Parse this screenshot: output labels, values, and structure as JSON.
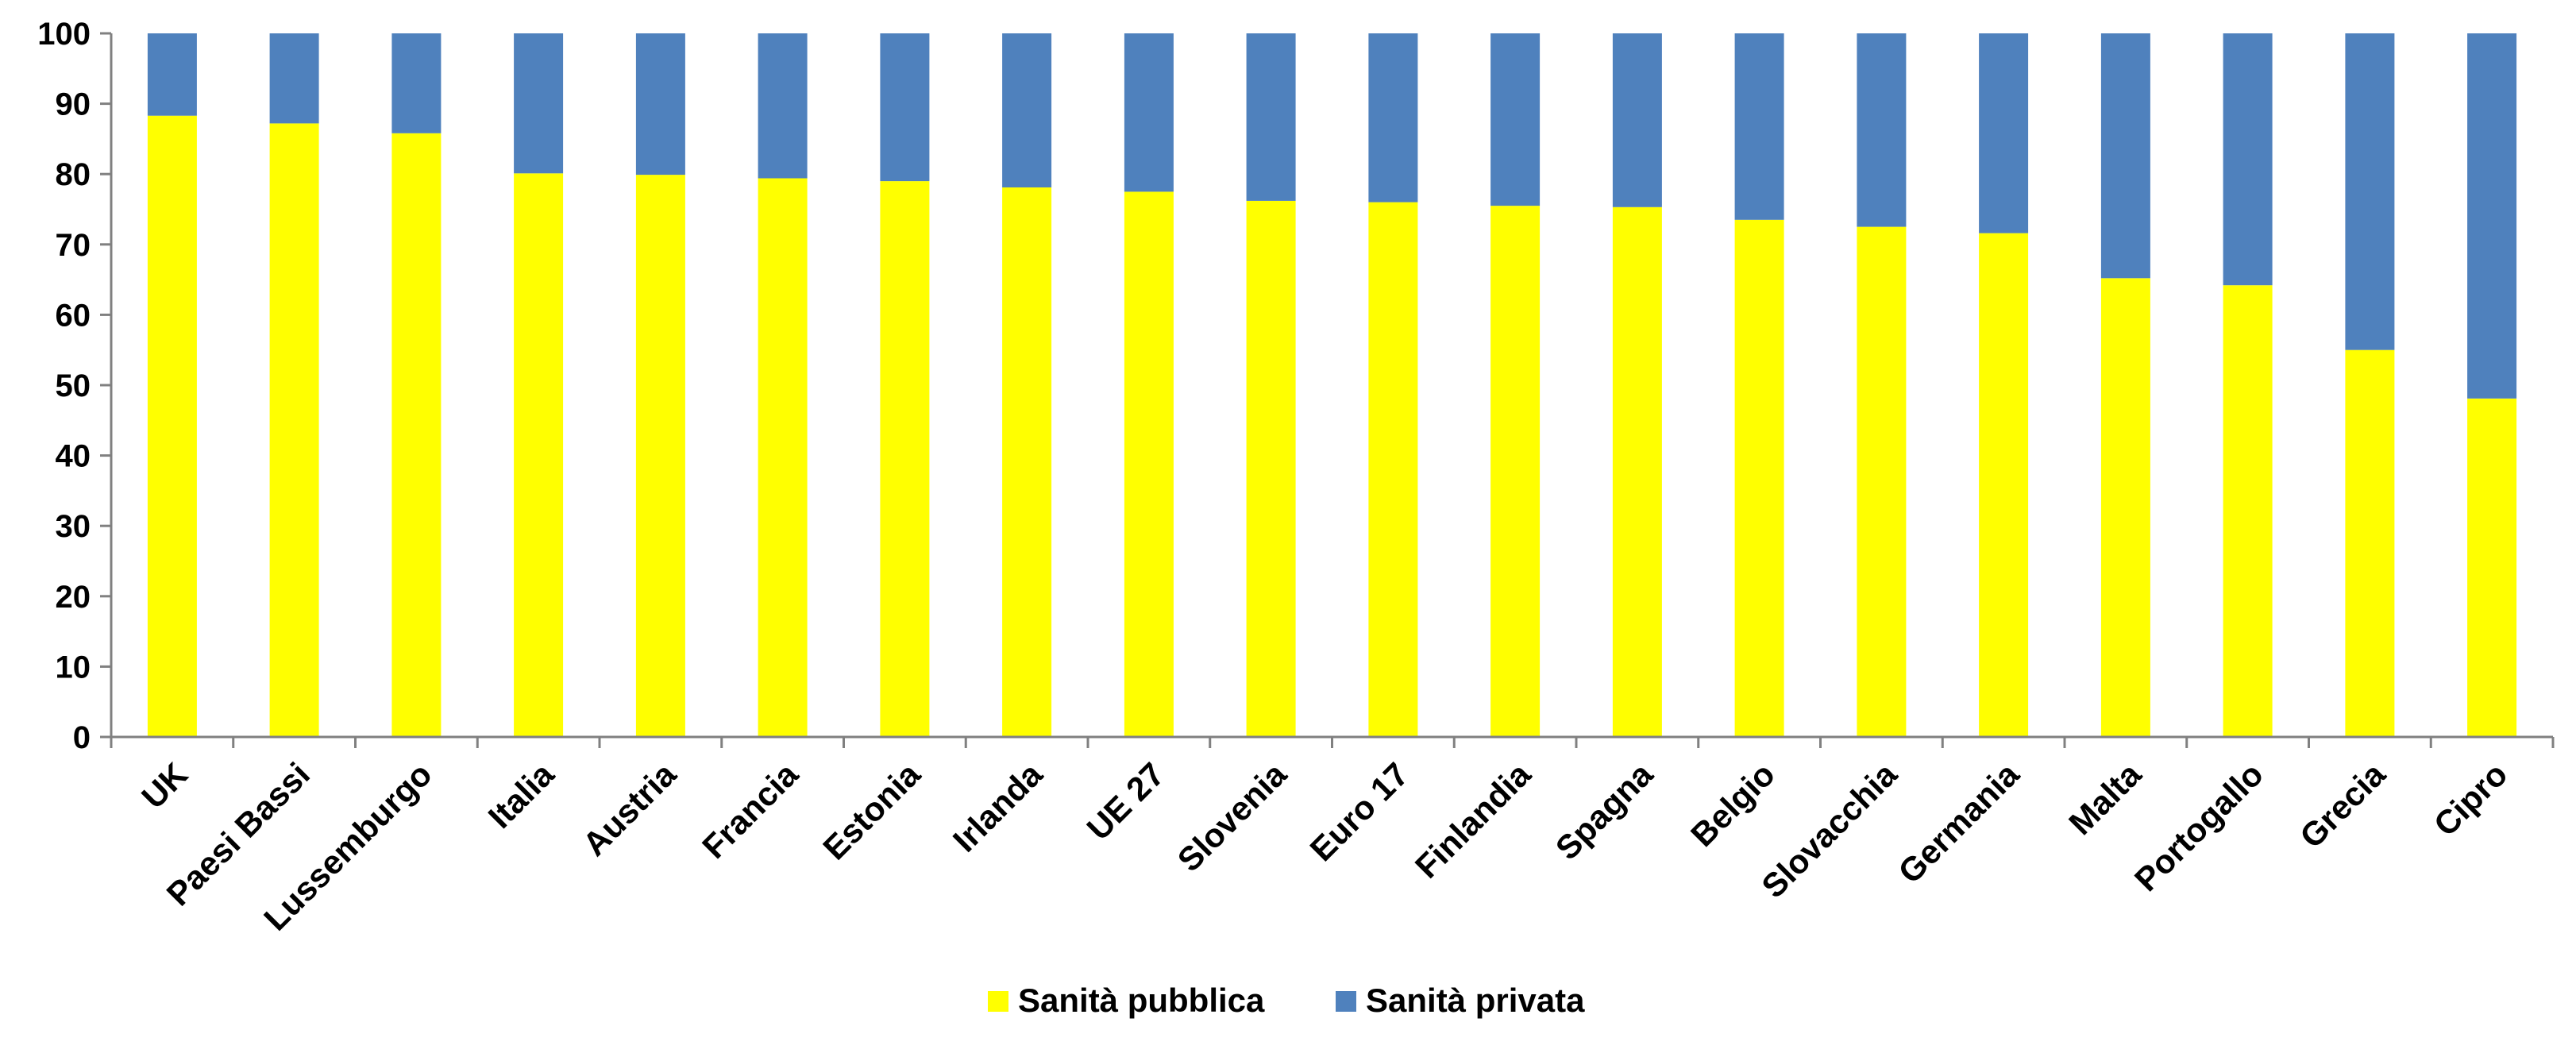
{
  "chart_data": {
    "type": "bar",
    "stacked": true,
    "title": "",
    "xlabel": "",
    "ylabel": "",
    "ylim": [
      0,
      100
    ],
    "yticks": [
      0,
      10,
      20,
      30,
      40,
      50,
      60,
      70,
      80,
      90,
      100
    ],
    "grid": false,
    "legend_position": "bottom",
    "categories": [
      "UK",
      "Paesi Bassi",
      "Lussemburgo",
      "Italia",
      "Austria",
      "Francia",
      "Estonia",
      "Irlanda",
      "UE 27",
      "Slovenia",
      "Euro 17",
      "Finlandia",
      "Spagna",
      "Belgio",
      "Slovacchia",
      "Germania",
      "Malta",
      "Portogallo",
      "Grecia",
      "Cipro"
    ],
    "series": [
      {
        "name": "Sanità pubblica",
        "color": "#ffff00",
        "values": [
          88.3,
          87.2,
          85.8,
          80.1,
          79.9,
          79.4,
          79.0,
          78.1,
          77.5,
          76.2,
          76.0,
          75.5,
          75.3,
          73.5,
          72.5,
          71.6,
          65.2,
          64.2,
          55.0,
          48.1
        ]
      },
      {
        "name": "Sanità privata",
        "color": "#4f81bd",
        "values": [
          11.7,
          12.8,
          14.2,
          19.9,
          20.1,
          20.6,
          21.0,
          21.9,
          22.5,
          23.8,
          24.0,
          24.5,
          24.7,
          26.5,
          27.5,
          28.4,
          34.8,
          35.8,
          45.0,
          51.9
        ]
      }
    ]
  }
}
